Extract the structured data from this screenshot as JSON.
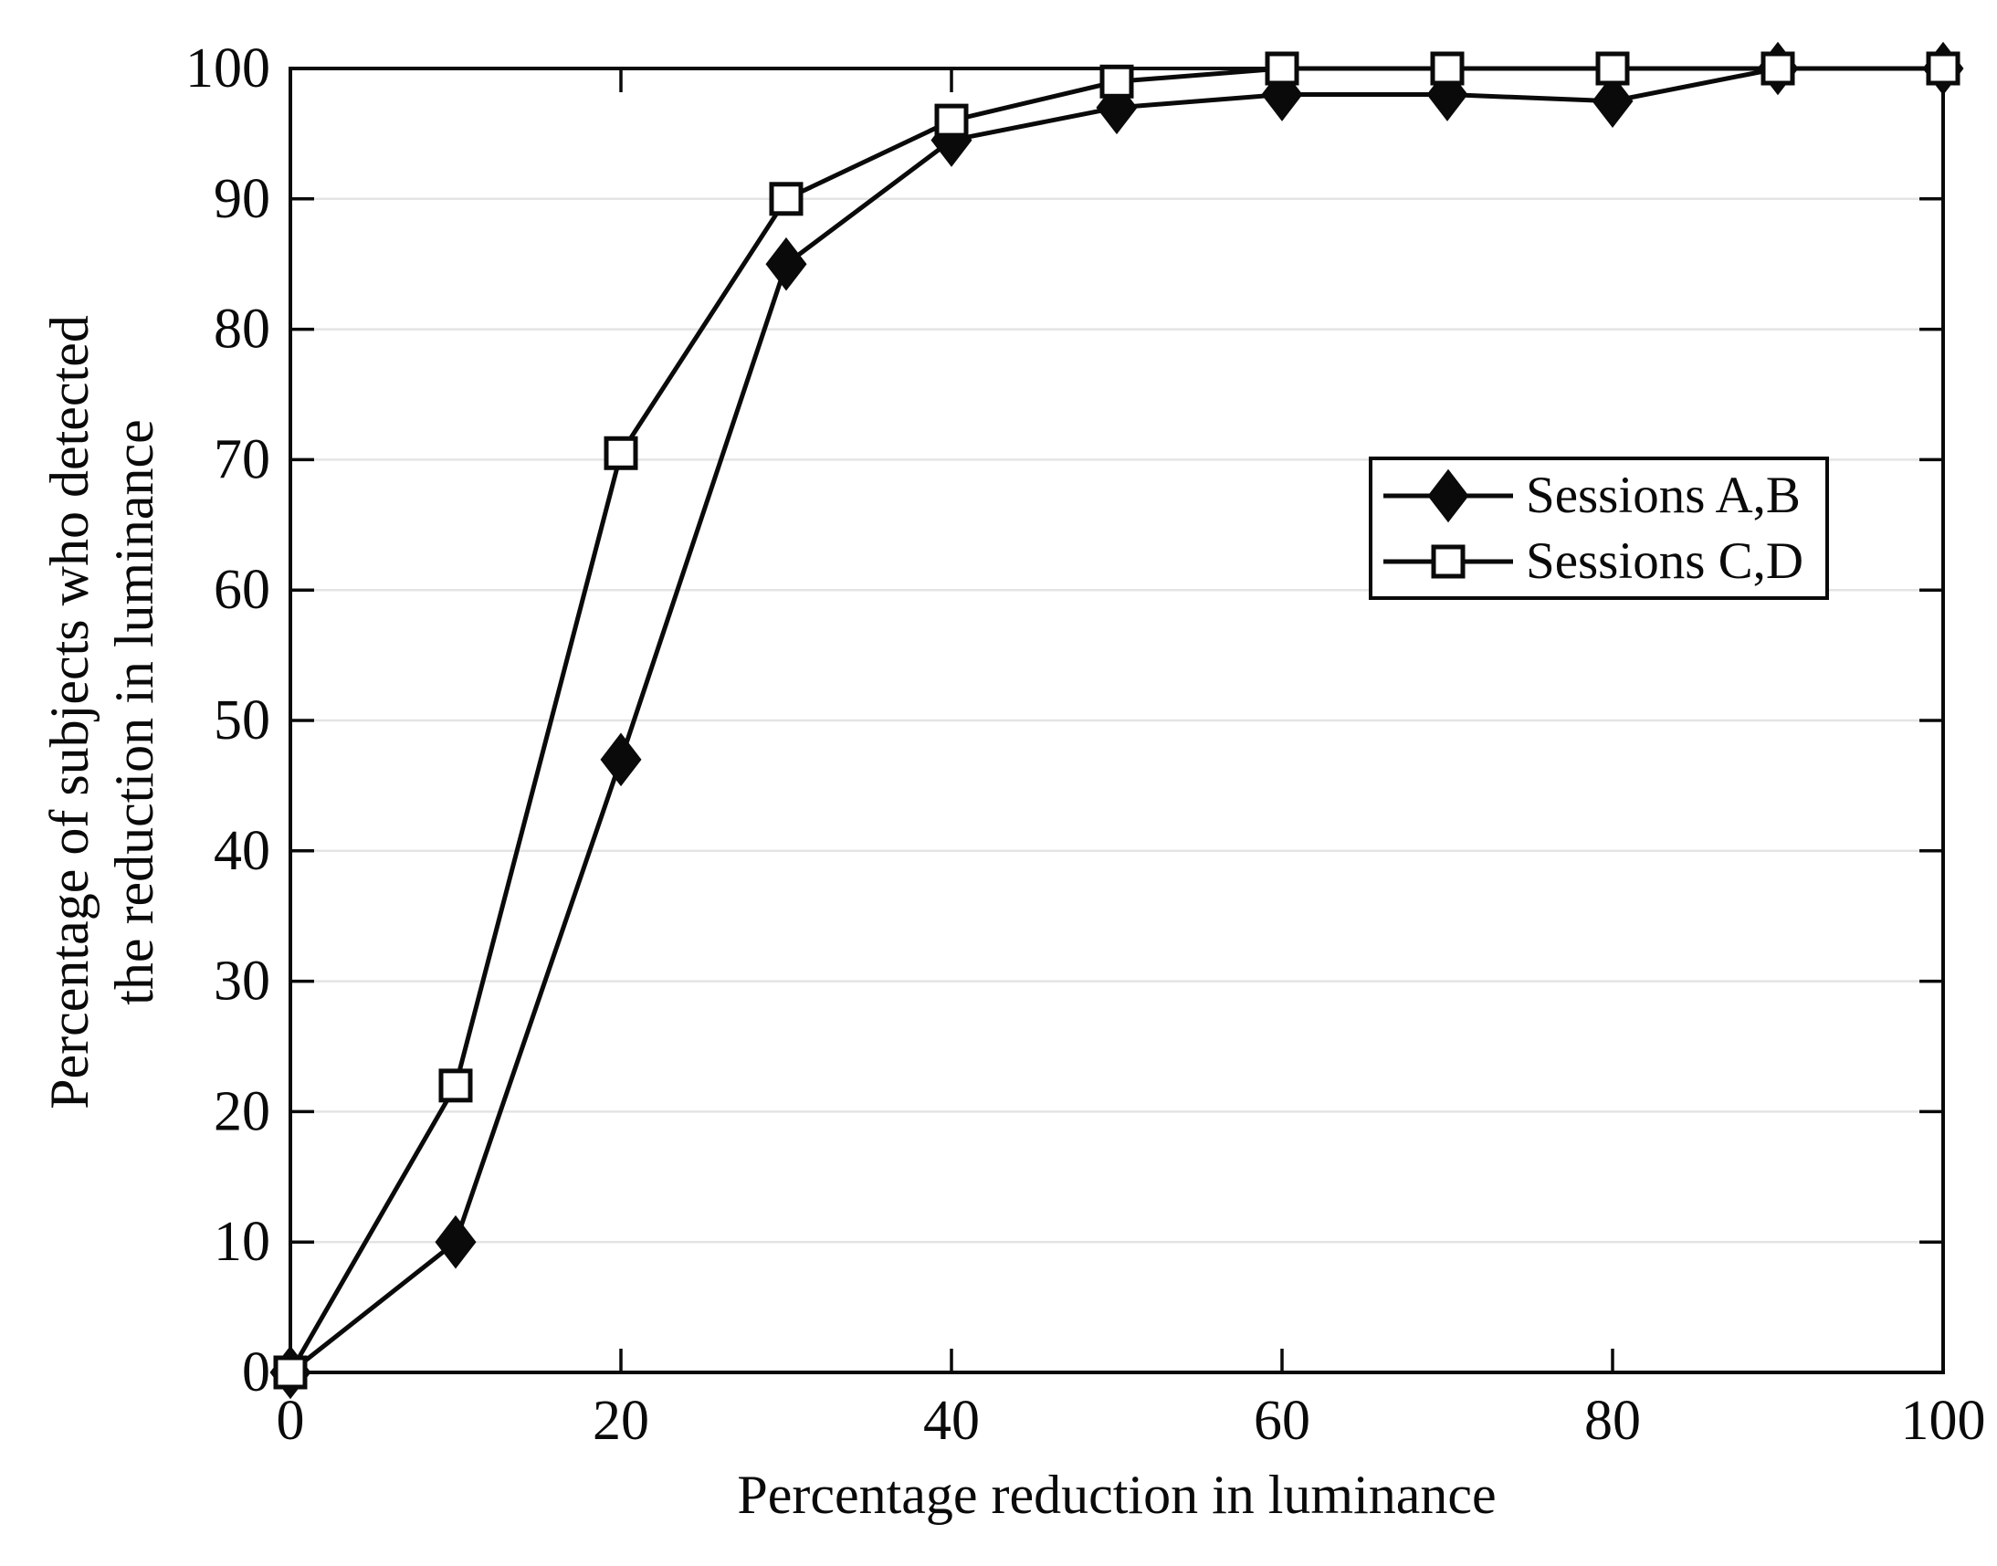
{
  "chart_data": {
    "type": "line",
    "x": [
      0,
      10,
      20,
      30,
      40,
      50,
      60,
      70,
      80,
      90,
      100
    ],
    "series": [
      {
        "name": "Sessions A,B",
        "marker": "diamond-filled",
        "values": [
          0,
          10,
          47,
          85,
          94.5,
          97,
          98,
          98,
          97.5,
          100,
          100
        ]
      },
      {
        "name": "Sessions C,D",
        "marker": "square-open",
        "values": [
          0,
          22,
          70.5,
          90,
          96,
          99,
          100,
          100,
          100,
          100,
          100
        ]
      }
    ],
    "xlabel": "Percentage reduction in luminance",
    "ylabel_lines": [
      "Percentage of subjects who detected",
      "the reduction in luminance"
    ],
    "xlim": [
      0,
      100
    ],
    "ylim": [
      0,
      100
    ],
    "xticks": [
      0,
      20,
      40,
      60,
      80,
      100
    ],
    "yticks": [
      0,
      10,
      20,
      30,
      40,
      50,
      60,
      70,
      80,
      90,
      100
    ],
    "grid": "horizontal-only",
    "legend_position": "inside-upper-right",
    "colors": {
      "foreground": "#0a0a0a",
      "grid": "#e4e4e4",
      "background": "#ffffff",
      "marker_fill_open": "#ffffff"
    }
  }
}
